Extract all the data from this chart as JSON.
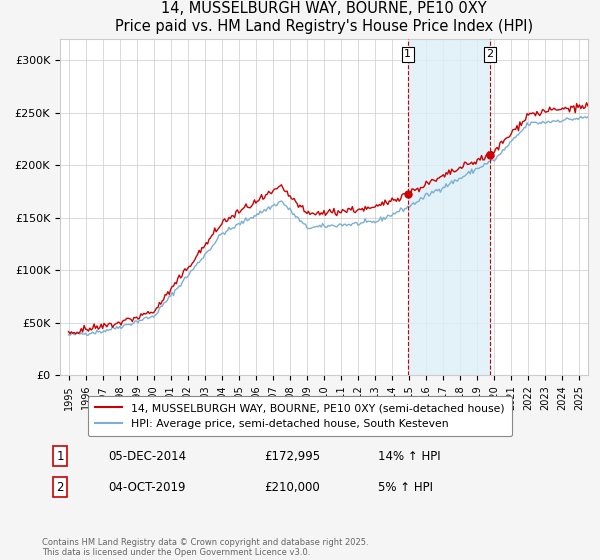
{
  "title": "14, MUSSELBURGH WAY, BOURNE, PE10 0XY",
  "subtitle": "Price paid vs. HM Land Registry's House Price Index (HPI)",
  "ylabel_ticks": [
    0,
    50000,
    100000,
    150000,
    200000,
    250000,
    300000
  ],
  "ylabel_labels": [
    "£0",
    "£50K",
    "£100K",
    "£150K",
    "£200K",
    "£250K",
    "£300K"
  ],
  "ylim": [
    0,
    320000
  ],
  "xlim_start": 1994.5,
  "xlim_end": 2025.5,
  "legend_line1": "14, MUSSELBURGH WAY, BOURNE, PE10 0XY (semi-detached house)",
  "legend_line2": "HPI: Average price, semi-detached house, South Kesteven",
  "annotation1_label": "1",
  "annotation1_date": "05-DEC-2014",
  "annotation1_price": "£172,995",
  "annotation1_hpi": "14% ↑ HPI",
  "annotation1_year": 2014.92,
  "annotation1_value": 172995,
  "annotation2_label": "2",
  "annotation2_date": "04-OCT-2019",
  "annotation2_price": "£210,000",
  "annotation2_hpi": "5% ↑ HPI",
  "annotation2_year": 2019.75,
  "annotation2_value": 210000,
  "footnote": "Contains HM Land Registry data © Crown copyright and database right 2025.\nThis data is licensed under the Open Government Licence v3.0.",
  "line_color_red": "#cc0000",
  "line_color_blue": "#7bafd4",
  "shade_color": "#ddeef8",
  "dashed_color": "#cc0000",
  "background_color": "#f5f5f5",
  "plot_bg": "#ffffff",
  "red_dot_color": "#cc0000"
}
